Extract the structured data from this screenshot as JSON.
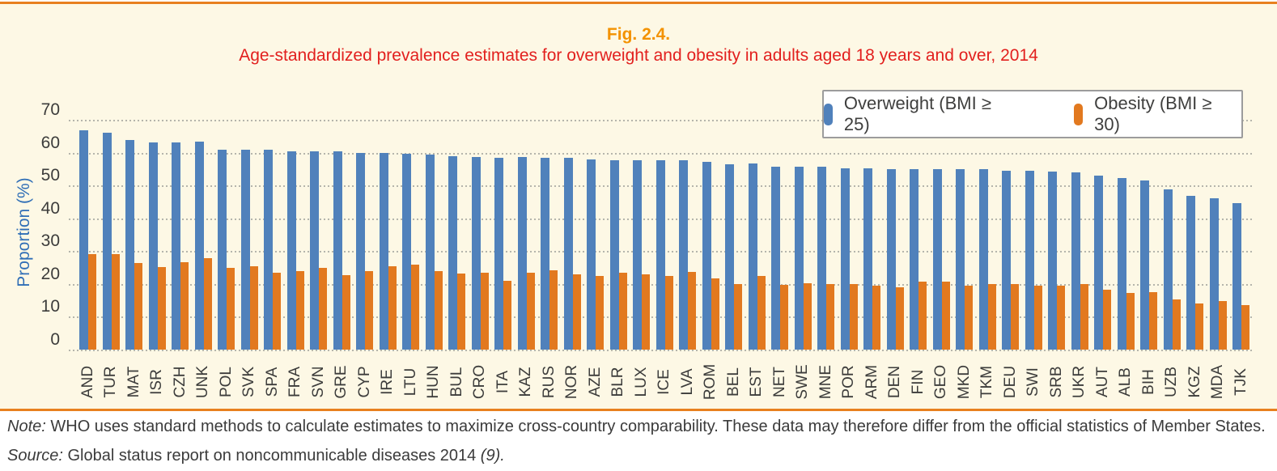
{
  "figure": {
    "label": "Fig. 2.4.",
    "title": "Age-standardized prevalence estimates for overweight and obesity in adults aged 18 years and over, 2014"
  },
  "chart_data": {
    "type": "bar",
    "title": "Age-standardized prevalence estimates for overweight and obesity in adults aged 18 years and over, 2014",
    "xlabel": "",
    "ylabel": "Proportion (%)",
    "ylim": [
      0,
      70
    ],
    "yticks": [
      0,
      10,
      20,
      30,
      40,
      50,
      60,
      70
    ],
    "grid": "horizontal-dotted",
    "legend_position": "top-right",
    "categories": [
      "AND",
      "TUR",
      "MAT",
      "ISR",
      "CZH",
      "UNK",
      "POL",
      "SVK",
      "SPA",
      "FRA",
      "SVN",
      "GRE",
      "CYP",
      "IRE",
      "LTU",
      "HUN",
      "BUL",
      "CRO",
      "ITA",
      "KAZ",
      "RUS",
      "NOR",
      "AZE",
      "BLR",
      "LUX",
      "ICE",
      "LVA",
      "ROM",
      "BEL",
      "EST",
      "NET",
      "SWE",
      "MNE",
      "POR",
      "ARM",
      "DEN",
      "FIN",
      "GEO",
      "MKD",
      "TKM",
      "DEU",
      "SWI",
      "SRB",
      "UKR",
      "AUT",
      "ALB",
      "BIH",
      "UZB",
      "KGZ",
      "MDA",
      "TJK"
    ],
    "series": [
      {
        "name": "Overweight (BMI ≥ 25)",
        "color": "#5081BB",
        "values": [
          66.8,
          66.0,
          63.9,
          63.2,
          63.2,
          63.4,
          60.9,
          60.8,
          60.8,
          60.5,
          60.5,
          60.5,
          60.0,
          60.0,
          59.7,
          59.3,
          58.8,
          58.7,
          58.5,
          58.7,
          58.5,
          58.3,
          58.0,
          57.7,
          57.6,
          57.6,
          57.6,
          57.3,
          56.4,
          56.6,
          55.6,
          55.6,
          55.6,
          55.2,
          55.2,
          55.0,
          55.0,
          55.0,
          55.0,
          55.0,
          54.4,
          54.4,
          54.2,
          54.0,
          52.9,
          52.3,
          51.5,
          48.8,
          46.8,
          46.2,
          44.7
        ]
      },
      {
        "name": "Obesity (BMI ≥ 30)",
        "color": "#E2791F",
        "values": [
          29.2,
          29.2,
          26.4,
          25.2,
          26.7,
          27.8,
          24.8,
          25.5,
          23.5,
          23.8,
          25.0,
          22.8,
          23.8,
          25.5,
          25.9,
          23.8,
          23.2,
          23.3,
          20.9,
          23.3,
          24.2,
          22.9,
          22.4,
          23.3,
          22.9,
          22.5,
          23.7,
          21.7,
          19.9,
          22.4,
          19.6,
          20.3,
          19.9,
          19.9,
          19.4,
          19.1,
          20.7,
          20.7,
          19.4,
          19.9,
          19.9,
          19.5,
          19.5,
          19.9,
          18.2,
          17.3,
          17.6,
          15.4,
          14.1,
          14.8,
          13.5
        ]
      }
    ]
  },
  "notes": {
    "note_label": "Note:",
    "note_text": " WHO uses standard methods to calculate estimates to maximize cross-country comparability. These data may therefore differ from the official statistics of Member States.",
    "source_label": "Source:",
    "source_text": " Global status report on noncommunicable diseases 2014 ",
    "source_ref": "(9)."
  },
  "colors": {
    "overweight_bar": "#5081BB",
    "obesity_bar": "#E2791F",
    "accent_rule": "#E8801F",
    "figure_label": "#F39200",
    "figure_title": "#E2201E",
    "axis_title": "#2F6EB6",
    "axis_text": "#3C3C3B",
    "panel_background": "#FDF8E5",
    "gridline": "#B5B5AC"
  }
}
